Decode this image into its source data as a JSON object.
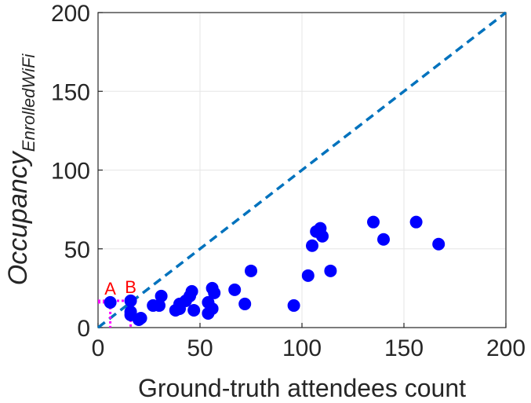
{
  "chart_data": {
    "type": "scatter",
    "title": "",
    "xlabel": "Ground-truth attendees count",
    "ylabel": "Occupancy",
    "ylabel_subscript": "EnrolledWiFi",
    "xlim": [
      0,
      200
    ],
    "ylim": [
      0,
      200
    ],
    "xticks": [
      "0",
      "50",
      "100",
      "150",
      "200"
    ],
    "yticks": [
      "0",
      "50",
      "100",
      "150",
      "200"
    ],
    "grid": true,
    "legend": "none",
    "reference_line": {
      "style": "dashed",
      "color": "#0072bd",
      "from": [
        0,
        0
      ],
      "to": [
        200,
        200
      ]
    },
    "marker_color": "#0000ff",
    "series": [
      {
        "color": "#0000ff",
        "points": [
          [
            6,
            16
          ],
          [
            16,
            17
          ],
          [
            16,
            10
          ],
          [
            16,
            8
          ],
          [
            20,
            5
          ],
          [
            21,
            6
          ],
          [
            27,
            14
          ],
          [
            30,
            14
          ],
          [
            31,
            20
          ],
          [
            38,
            11
          ],
          [
            40,
            12
          ],
          [
            40,
            15
          ],
          [
            43,
            17
          ],
          [
            45,
            20
          ],
          [
            46,
            23
          ],
          [
            47,
            11
          ],
          [
            54,
            9
          ],
          [
            54,
            16
          ],
          [
            56,
            12
          ],
          [
            56,
            25
          ],
          [
            57,
            22
          ],
          [
            67,
            24
          ],
          [
            72,
            15
          ],
          [
            75,
            36
          ],
          [
            96,
            14
          ],
          [
            103,
            33
          ],
          [
            105,
            52
          ],
          [
            107,
            61
          ],
          [
            109,
            63
          ],
          [
            110,
            58
          ],
          [
            114,
            36
          ],
          [
            135,
            67
          ],
          [
            140,
            56
          ],
          [
            156,
            67
          ],
          [
            167,
            53
          ]
        ]
      }
    ],
    "annotations": [
      {
        "label": "A",
        "x": 6,
        "y": 16,
        "color": "#ff0000",
        "guide_color": "#ff00ff"
      },
      {
        "label": "B",
        "x": 16,
        "y": 17,
        "color": "#ff0000",
        "guide_color": "#ff00ff"
      }
    ]
  }
}
